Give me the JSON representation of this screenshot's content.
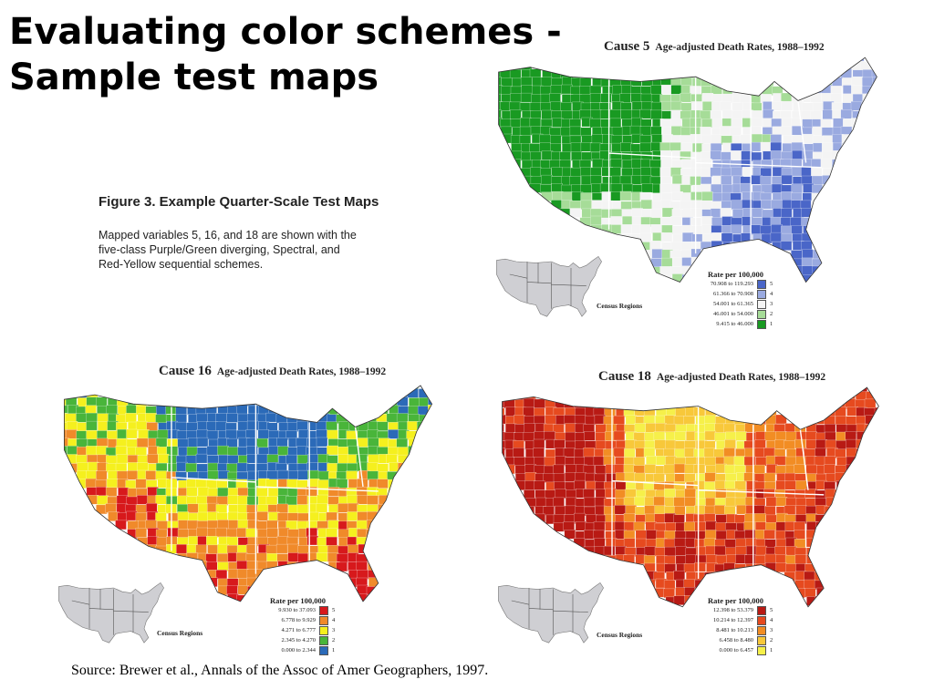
{
  "slide": {
    "title_line1": "Evaluating color schemes -",
    "title_line2": "Sample test maps"
  },
  "figure": {
    "title": "Figure 3.  Example Quarter-Scale Test Maps",
    "desc_line1": "Mapped variables 5, 16, and 18 are shown with the",
    "desc_line2": "five-class Purple/Green diverging, Spectral, and",
    "desc_line3": "Red-Yellow sequential schemes."
  },
  "maps": [
    {
      "cause": "Cause 5",
      "subtitle": "Age-adjusted Death Rates, 1988–1992",
      "legend_title": "Rate per 100,000",
      "census_label": "Census Regions",
      "classes": [
        {
          "range": "70.908 to 119.293",
          "num": "5",
          "color": "#4a66c8"
        },
        {
          "range": "61.366 to 70.908",
          "num": "4",
          "color": "#9aaae0"
        },
        {
          "range": "54.001 to 61.365",
          "num": "3",
          "color": "#f4f4f4"
        },
        {
          "range": "46.001 to 54.000",
          "num": "2",
          "color": "#a6dc98"
        },
        {
          "range": "9.415 to 46.000",
          "num": "1",
          "color": "#199a22"
        }
      ]
    },
    {
      "cause": "Cause 16",
      "subtitle": "Age-adjusted Death Rates, 1988–1992",
      "legend_title": "Rate per 100,000",
      "census_label": "Census Regions",
      "classes": [
        {
          "range": "9.930 to 37.093",
          "num": "5",
          "color": "#d7191c"
        },
        {
          "range": "6.778 to 9.929",
          "num": "4",
          "color": "#f08a2a"
        },
        {
          "range": "4.271 to 6.777",
          "num": "3",
          "color": "#f5f01e"
        },
        {
          "range": "2.345 to 4.270",
          "num": "2",
          "color": "#49b53a"
        },
        {
          "range": "0.000 to 2.344",
          "num": "1",
          "color": "#2b6ab8"
        }
      ]
    },
    {
      "cause": "Cause 18",
      "subtitle": "Age-adjusted Death Rates, 1988–1992",
      "legend_title": "Rate per 100,000",
      "census_label": "Census Regions",
      "classes": [
        {
          "range": "12.398 to 53.379",
          "num": "5",
          "color": "#b81a14"
        },
        {
          "range": "10.214 to 12.397",
          "num": "4",
          "color": "#e64a1f"
        },
        {
          "range": "8.481 to 10.213",
          "num": "3",
          "color": "#f28d24"
        },
        {
          "range": "6.458 to 8.480",
          "num": "2",
          "color": "#f8c83a"
        },
        {
          "range": "0.000 to 6.457",
          "num": "1",
          "color": "#f6f04a"
        }
      ]
    }
  ],
  "source": "Source: Brewer et al., Annals of the Assoc of Amer Geographers, 1997."
}
